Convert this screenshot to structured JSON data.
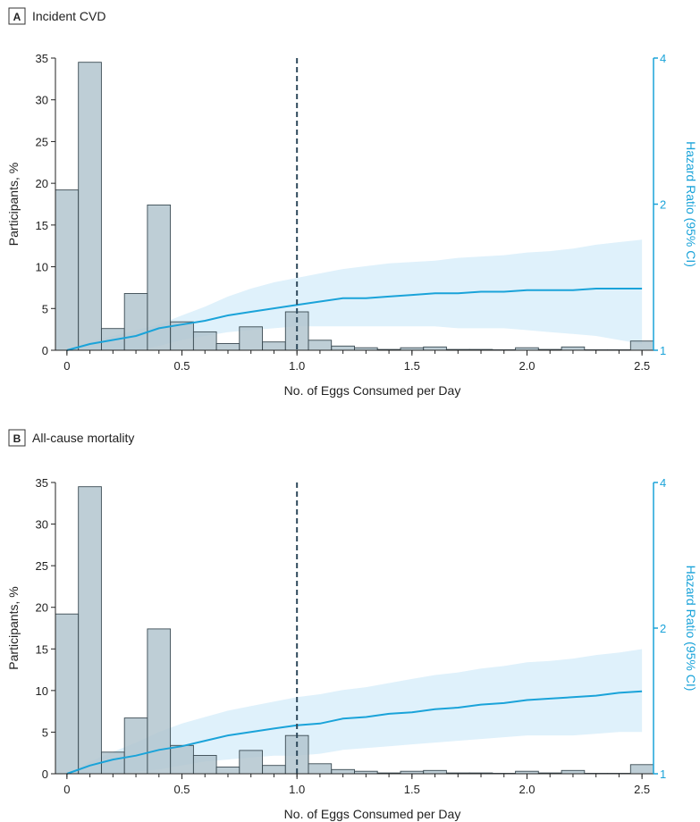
{
  "chart_data": [
    {
      "type": "bar",
      "panel_letter": "A",
      "title": "Incident CVD",
      "xlabel": "No. of Eggs Consumed per Day",
      "ylabel": "Participants, %",
      "y2label": "Hazard Ratio (95% CI)",
      "xlim": [
        -0.05,
        2.55
      ],
      "ylim": [
        0,
        35
      ],
      "y2lim": [
        1,
        4
      ],
      "y2_scale": "log",
      "x_ticks": [
        "0",
        "0.5",
        "1.0",
        "1.5",
        "2.0",
        "2.5"
      ],
      "x_tick_values": [
        0,
        0.5,
        1.0,
        1.5,
        2.0,
        2.5
      ],
      "y_ticks": [
        0,
        5,
        10,
        15,
        20,
        25,
        30,
        35
      ],
      "y2_ticks": [
        1,
        2,
        4
      ],
      "reference_line_x": 1.0,
      "bin_width": 0.1,
      "bins": [
        0,
        0.1,
        0.2,
        0.3,
        0.4,
        0.5,
        0.6,
        0.7,
        0.8,
        0.9,
        1.0,
        1.1,
        1.2,
        1.3,
        1.4,
        1.5,
        1.6,
        1.7,
        1.8,
        1.9,
        2.0,
        2.1,
        2.2,
        2.3,
        2.4,
        2.5
      ],
      "values": [
        19.2,
        34.5,
        2.6,
        6.8,
        17.4,
        3.4,
        2.2,
        0.8,
        2.8,
        1.0,
        4.6,
        1.2,
        0.5,
        0.3,
        0.1,
        0.3,
        0.4,
        0.1,
        0.1,
        0.05,
        0.3,
        0.1,
        0.4,
        0.05,
        0.05,
        1.1
      ],
      "hr_x": [
        0,
        0.1,
        0.2,
        0.3,
        0.4,
        0.5,
        0.6,
        0.7,
        0.8,
        0.9,
        1.0,
        1.1,
        1.2,
        1.3,
        1.4,
        1.5,
        1.6,
        1.7,
        1.8,
        1.9,
        2.0,
        2.1,
        2.2,
        2.3,
        2.4,
        2.5
      ],
      "hr": [
        1.0,
        1.03,
        1.05,
        1.07,
        1.11,
        1.13,
        1.15,
        1.18,
        1.2,
        1.22,
        1.24,
        1.26,
        1.28,
        1.28,
        1.29,
        1.3,
        1.31,
        1.31,
        1.32,
        1.32,
        1.33,
        1.33,
        1.33,
        1.34,
        1.34,
        1.34
      ],
      "hr_lower": [
        1.0,
        1.0,
        1.0,
        1.0,
        1.02,
        1.05,
        1.07,
        1.09,
        1.1,
        1.11,
        1.12,
        1.12,
        1.12,
        1.12,
        1.12,
        1.12,
        1.12,
        1.11,
        1.11,
        1.11,
        1.1,
        1.09,
        1.08,
        1.07,
        1.05,
        1.03
      ],
      "hr_upper": [
        1.0,
        1.04,
        1.07,
        1.1,
        1.13,
        1.18,
        1.23,
        1.29,
        1.34,
        1.38,
        1.41,
        1.44,
        1.47,
        1.49,
        1.51,
        1.52,
        1.53,
        1.55,
        1.56,
        1.57,
        1.59,
        1.6,
        1.62,
        1.65,
        1.67,
        1.69
      ]
    },
    {
      "type": "bar",
      "panel_letter": "B",
      "title": "All-cause mortality",
      "xlabel": "No. of Eggs Consumed per Day",
      "ylabel": "Participants, %",
      "y2label": "Hazard Ratio (95% CI)",
      "xlim": [
        -0.05,
        2.55
      ],
      "ylim": [
        0,
        35
      ],
      "y2lim": [
        1,
        4
      ],
      "y2_scale": "log",
      "x_ticks": [
        "0",
        "0.5",
        "1.0",
        "1.5",
        "2.0",
        "2.5"
      ],
      "x_tick_values": [
        0,
        0.5,
        1.0,
        1.5,
        2.0,
        2.5
      ],
      "y_ticks": [
        0,
        5,
        10,
        15,
        20,
        25,
        30,
        35
      ],
      "y2_ticks": [
        1,
        2,
        4
      ],
      "reference_line_x": 1.0,
      "bin_width": 0.1,
      "bins": [
        0,
        0.1,
        0.2,
        0.3,
        0.4,
        0.5,
        0.6,
        0.7,
        0.8,
        0.9,
        1.0,
        1.1,
        1.2,
        1.3,
        1.4,
        1.5,
        1.6,
        1.7,
        1.8,
        1.9,
        2.0,
        2.1,
        2.2,
        2.3,
        2.4,
        2.5
      ],
      "values": [
        19.2,
        34.5,
        2.6,
        6.7,
        17.4,
        3.4,
        2.2,
        0.8,
        2.8,
        1.0,
        4.6,
        1.2,
        0.5,
        0.3,
        0.1,
        0.3,
        0.4,
        0.1,
        0.1,
        0.05,
        0.3,
        0.1,
        0.4,
        0.05,
        0.05,
        1.1
      ],
      "hr_x": [
        0,
        0.1,
        0.2,
        0.3,
        0.4,
        0.5,
        0.6,
        0.7,
        0.8,
        0.9,
        1.0,
        1.1,
        1.2,
        1.3,
        1.4,
        1.5,
        1.6,
        1.7,
        1.8,
        1.9,
        2.0,
        2.1,
        2.2,
        2.3,
        2.4,
        2.5
      ],
      "hr": [
        1.0,
        1.04,
        1.07,
        1.09,
        1.12,
        1.14,
        1.17,
        1.2,
        1.22,
        1.24,
        1.26,
        1.27,
        1.3,
        1.31,
        1.33,
        1.34,
        1.36,
        1.37,
        1.39,
        1.4,
        1.42,
        1.43,
        1.44,
        1.45,
        1.47,
        1.48
      ],
      "hr_lower": [
        1.0,
        1.0,
        1.0,
        1.01,
        1.02,
        1.04,
        1.06,
        1.07,
        1.08,
        1.09,
        1.09,
        1.1,
        1.12,
        1.13,
        1.14,
        1.15,
        1.16,
        1.17,
        1.18,
        1.19,
        1.2,
        1.2,
        1.2,
        1.21,
        1.22,
        1.22
      ],
      "hr_upper": [
        1.0,
        1.06,
        1.11,
        1.16,
        1.22,
        1.27,
        1.31,
        1.35,
        1.38,
        1.41,
        1.44,
        1.46,
        1.49,
        1.51,
        1.54,
        1.57,
        1.6,
        1.62,
        1.65,
        1.67,
        1.7,
        1.71,
        1.73,
        1.76,
        1.78,
        1.81
      ]
    }
  ],
  "colors": {
    "bar_fill": "#b3c6cf",
    "bar_stroke": "#3a4a52",
    "hr_line": "#1aa3d9",
    "ci_band": "#dff1fb",
    "ref_line": "#2f4a5c",
    "axis": "#222222"
  }
}
